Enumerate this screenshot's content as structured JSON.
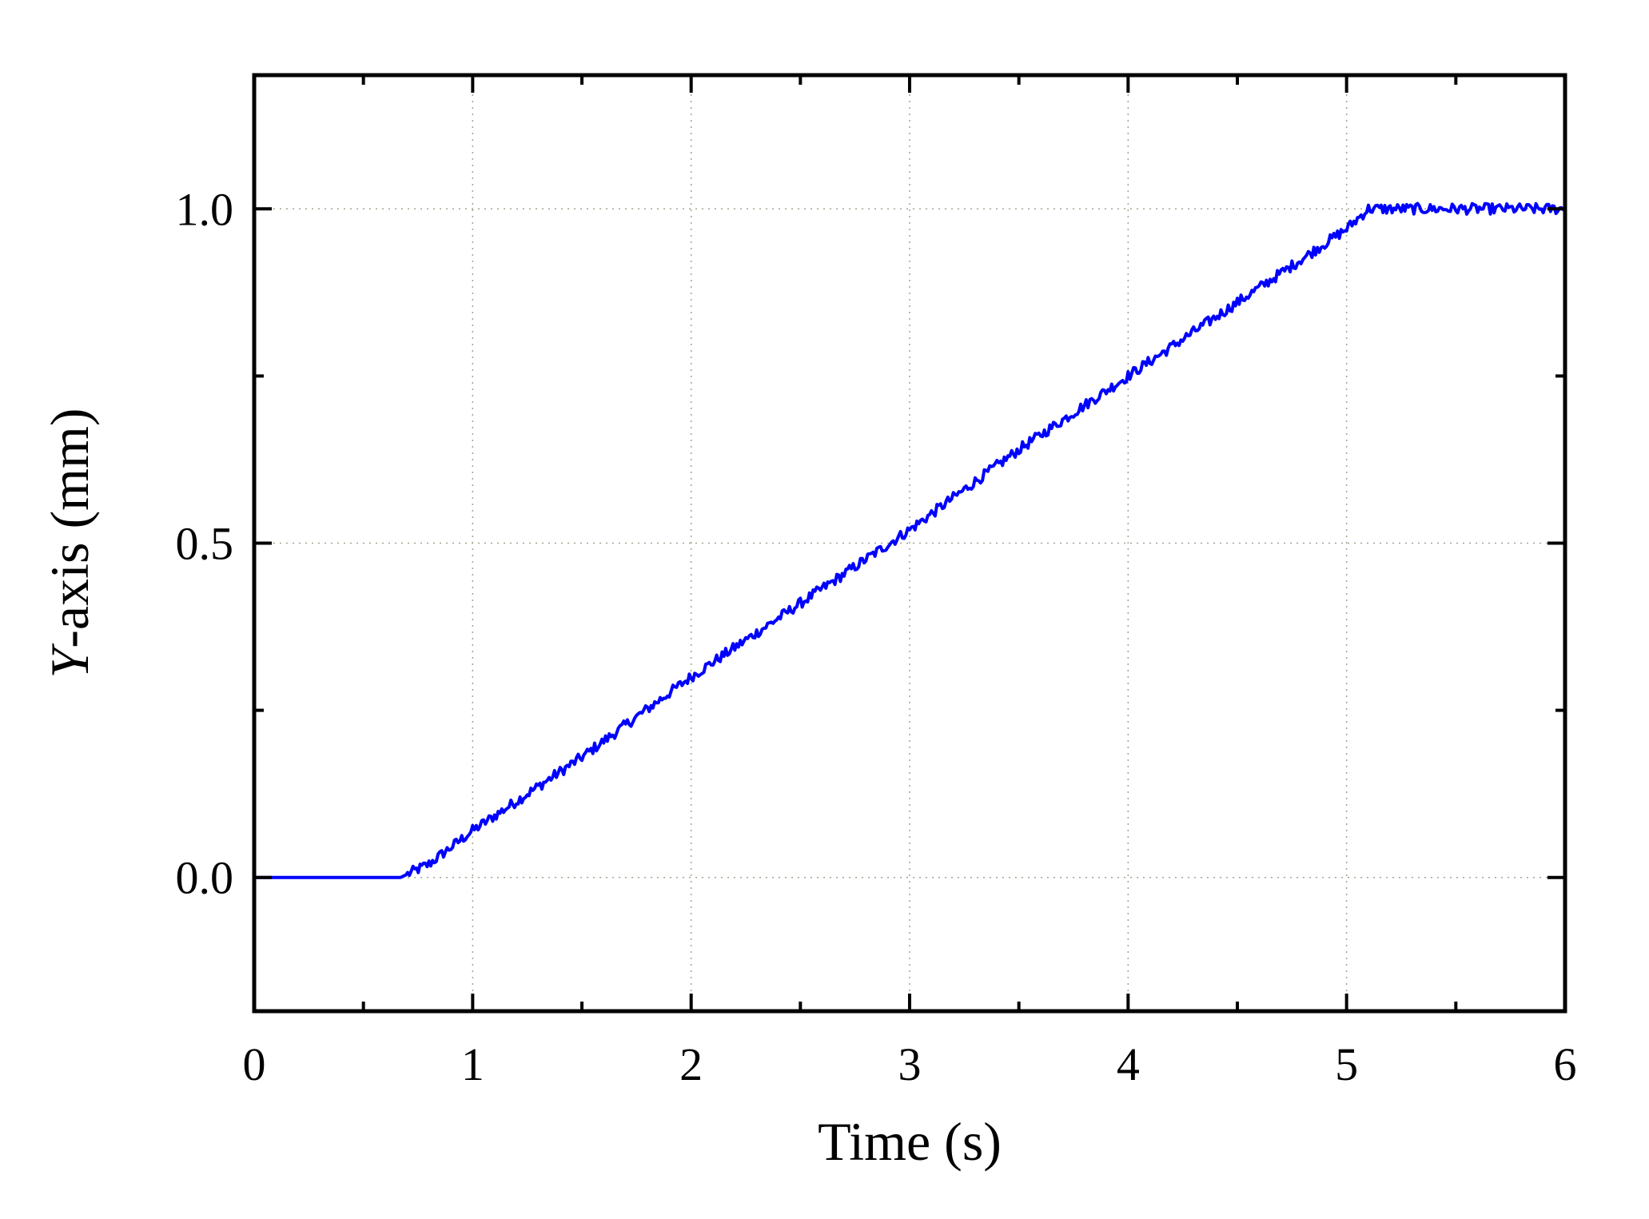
{
  "chart_data": {
    "type": "line",
    "title": "",
    "xlabel": "Time (s)",
    "ylabel_italic": "Y",
    "ylabel_rest": "-axis (mm)",
    "xlim": [
      0,
      6
    ],
    "ylim": [
      -0.2,
      1.2
    ],
    "x_ticks": [
      0,
      1,
      2,
      3,
      4,
      5,
      6
    ],
    "x_minor_ticks": [
      0.5,
      1.5,
      2.5,
      3.5,
      4.5,
      5.5
    ],
    "x_tick_labels": [
      "0",
      "1",
      "2",
      "3",
      "4",
      "5",
      "6"
    ],
    "y_ticks": [
      0.0,
      0.5,
      1.0
    ],
    "y_minor_ticks": [
      0.25,
      0.75
    ],
    "y_tick_labels": [
      "0.0",
      "0.5",
      "1.0"
    ],
    "grid": true,
    "legend": "none",
    "series": [
      {
        "color": "#0000ff",
        "x": [
          0,
          0.67,
          0.8,
          1.0,
          1.5,
          2.0,
          2.5,
          3.0,
          3.5,
          4.0,
          4.5,
          5.0,
          5.1,
          5.2,
          5.5,
          6.0
        ],
        "y": [
          0,
          0,
          0.02,
          0.07,
          0.18,
          0.3,
          0.41,
          0.52,
          0.64,
          0.75,
          0.86,
          0.97,
          1.0,
          1.0,
          1.0,
          1.0
        ],
        "noise_amplitude": 0.008
      }
    ]
  }
}
